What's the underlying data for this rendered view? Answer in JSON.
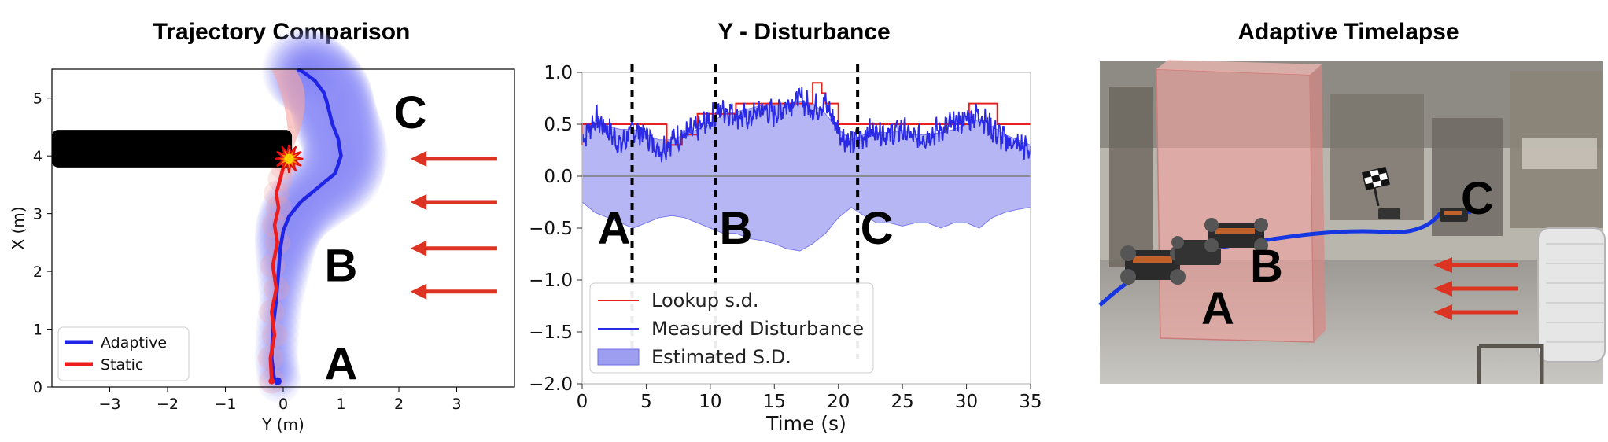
{
  "chart_data": [
    {
      "type": "line",
      "title": "Trajectory Comparison",
      "xlabel": "Y (m)",
      "ylabel": "X (m)",
      "xlim": [
        -4,
        4
      ],
      "ylim": [
        0,
        5.5
      ],
      "xticks": [
        "−3",
        "−2",
        "−1",
        "0",
        "1",
        "2",
        "3"
      ],
      "xtick_values": [
        -3,
        -2,
        -1,
        0,
        1,
        2,
        3
      ],
      "yticks": [
        "0",
        "1",
        "2",
        "3",
        "4",
        "5"
      ],
      "ytick_values": [
        0,
        1,
        2,
        3,
        4,
        5
      ],
      "obstacle": {
        "x": [
          -4,
          0.15
        ],
        "y": [
          3.8,
          4.45
        ]
      },
      "legend": {
        "position": "lower-left",
        "entries": [
          "Adaptive",
          "Static"
        ]
      },
      "series": [
        {
          "name": "Adaptive",
          "color": "#1f24e6",
          "x": [
            -0.15,
            -0.2,
            -0.18,
            -0.12,
            -0.08,
            -0.05,
            0.0,
            0.1,
            0.3,
            0.6,
            0.9,
            1.0,
            0.95,
            0.85,
            0.8,
            0.75,
            0.7,
            0.55,
            0.35,
            0.25
          ],
          "y": [
            0.1,
            0.5,
            1.0,
            1.5,
            2.0,
            2.4,
            2.7,
            2.95,
            3.2,
            3.45,
            3.7,
            4.0,
            4.3,
            4.55,
            4.75,
            4.95,
            5.1,
            5.3,
            5.45,
            5.5
          ]
        },
        {
          "name": "Static",
          "color": "#ee1d1d",
          "x": [
            -0.2,
            -0.22,
            -0.15,
            -0.2,
            -0.12,
            -0.18,
            -0.1,
            -0.15,
            -0.08,
            -0.12,
            -0.05,
            0.0,
            0.05,
            0.1
          ],
          "y": [
            0.1,
            0.5,
            0.9,
            1.3,
            1.7,
            2.1,
            2.5,
            2.8,
            3.1,
            3.35,
            3.6,
            3.8,
            3.9,
            3.95
          ]
        }
      ],
      "collision_marker": {
        "x": 0.1,
        "y": 3.95
      },
      "region_labels": [
        {
          "text": "A",
          "x": 1.0,
          "y": 0.4
        },
        {
          "text": "B",
          "x": 1.0,
          "y": 2.1
        },
        {
          "text": "C",
          "x": 2.2,
          "y": 4.75
        }
      ],
      "wind_arrow_ys": [
        3.95,
        3.2,
        2.4,
        1.65
      ]
    },
    {
      "type": "line",
      "title": "Y - Disturbance",
      "xlabel": "Time (s)",
      "ylabel": "",
      "xlim": [
        0,
        35
      ],
      "ylim": [
        -2.0,
        1.0
      ],
      "xticks": [
        "0",
        "5",
        "10",
        "15",
        "20",
        "25",
        "30",
        "35"
      ],
      "xtick_values": [
        0,
        5,
        10,
        15,
        20,
        25,
        30,
        35
      ],
      "yticks": [
        "1.0",
        "0.5",
        "0.0",
        "−0.5",
        "−1.0",
        "−1.5",
        "−2.0"
      ],
      "ytick_values": [
        1.0,
        0.5,
        0.0,
        -0.5,
        -1.0,
        -1.5,
        -2.0
      ],
      "legend": {
        "position": "lower-left",
        "entries": [
          "Lookup s.d.",
          "Measured Disturbance",
          "Estimated S.D."
        ]
      },
      "lookup": {
        "name": "Lookup s.d.",
        "color": "#e82020",
        "x": [
          0,
          0,
          0.3,
          0.3,
          6.6,
          6.6,
          7.8,
          7.8,
          9.0,
          9.0,
          12.0,
          12.0,
          18.0,
          18.0,
          18.7,
          18.7,
          19.0,
          19.0,
          20.0,
          20.0,
          30.2,
          30.2,
          32.4,
          32.4,
          35
        ],
        "y": [
          0.3,
          0.5,
          0.5,
          0.5,
          0.5,
          0.3,
          0.3,
          0.4,
          0.4,
          0.6,
          0.6,
          0.7,
          0.7,
          0.9,
          0.9,
          0.8,
          0.8,
          0.7,
          0.7,
          0.5,
          0.5,
          0.7,
          0.7,
          0.5,
          0.5
        ]
      },
      "measured": {
        "name": "Measured Disturbance",
        "color": "#2a2ae6",
        "x": [
          0,
          1,
          2,
          3,
          4,
          5,
          6,
          7,
          8,
          9,
          10,
          11,
          12,
          13,
          14,
          15,
          16,
          17,
          18,
          19,
          20,
          21,
          22,
          23,
          24,
          25,
          26,
          27,
          28,
          29,
          30,
          31,
          32,
          33,
          34,
          35
        ],
        "y": [
          0.35,
          0.55,
          0.45,
          0.3,
          0.45,
          0.4,
          0.25,
          0.35,
          0.4,
          0.45,
          0.55,
          0.65,
          0.6,
          0.55,
          0.65,
          0.6,
          0.7,
          0.75,
          0.65,
          0.7,
          0.45,
          0.3,
          0.4,
          0.45,
          0.4,
          0.45,
          0.35,
          0.4,
          0.45,
          0.5,
          0.55,
          0.6,
          0.45,
          0.35,
          0.3,
          0.25
        ]
      },
      "estimated_sd": {
        "name": "Estimated S.D.",
        "color": "#9e9ef0",
        "upper": [
          0.5,
          0.5,
          0.48,
          0.45,
          0.45,
          0.4,
          0.35,
          0.35,
          0.4,
          0.45,
          0.5,
          0.6,
          0.62,
          0.65,
          0.68,
          0.7,
          0.7,
          0.72,
          0.7,
          0.6,
          0.45,
          0.35,
          0.4,
          0.42,
          0.42,
          0.44,
          0.4,
          0.4,
          0.42,
          0.45,
          0.5,
          0.55,
          0.48,
          0.4,
          0.35,
          0.3
        ],
        "lower": [
          -0.25,
          -0.35,
          -0.4,
          -0.45,
          -0.5,
          -0.45,
          -0.4,
          -0.38,
          -0.4,
          -0.45,
          -0.5,
          -0.55,
          -0.55,
          -0.6,
          -0.62,
          -0.65,
          -0.7,
          -0.72,
          -0.65,
          -0.55,
          -0.4,
          -0.3,
          -0.38,
          -0.45,
          -0.45,
          -0.48,
          -0.45,
          -0.45,
          -0.5,
          -0.45,
          -0.45,
          -0.5,
          -0.4,
          -0.35,
          -0.32,
          -0.3
        ]
      },
      "zero_line": 0.0,
      "vlines": [
        3.9,
        10.4,
        21.5
      ],
      "region_labels": [
        {
          "text": "A",
          "x": 2.5,
          "y": -0.5
        },
        {
          "text": "B",
          "x": 12.0,
          "y": -0.5
        },
        {
          "text": "C",
          "x": 23.0,
          "y": -0.5
        }
      ]
    }
  ],
  "timelapse": {
    "title": "Adaptive Timelapse",
    "labels": [
      "A",
      "B",
      "C"
    ]
  }
}
